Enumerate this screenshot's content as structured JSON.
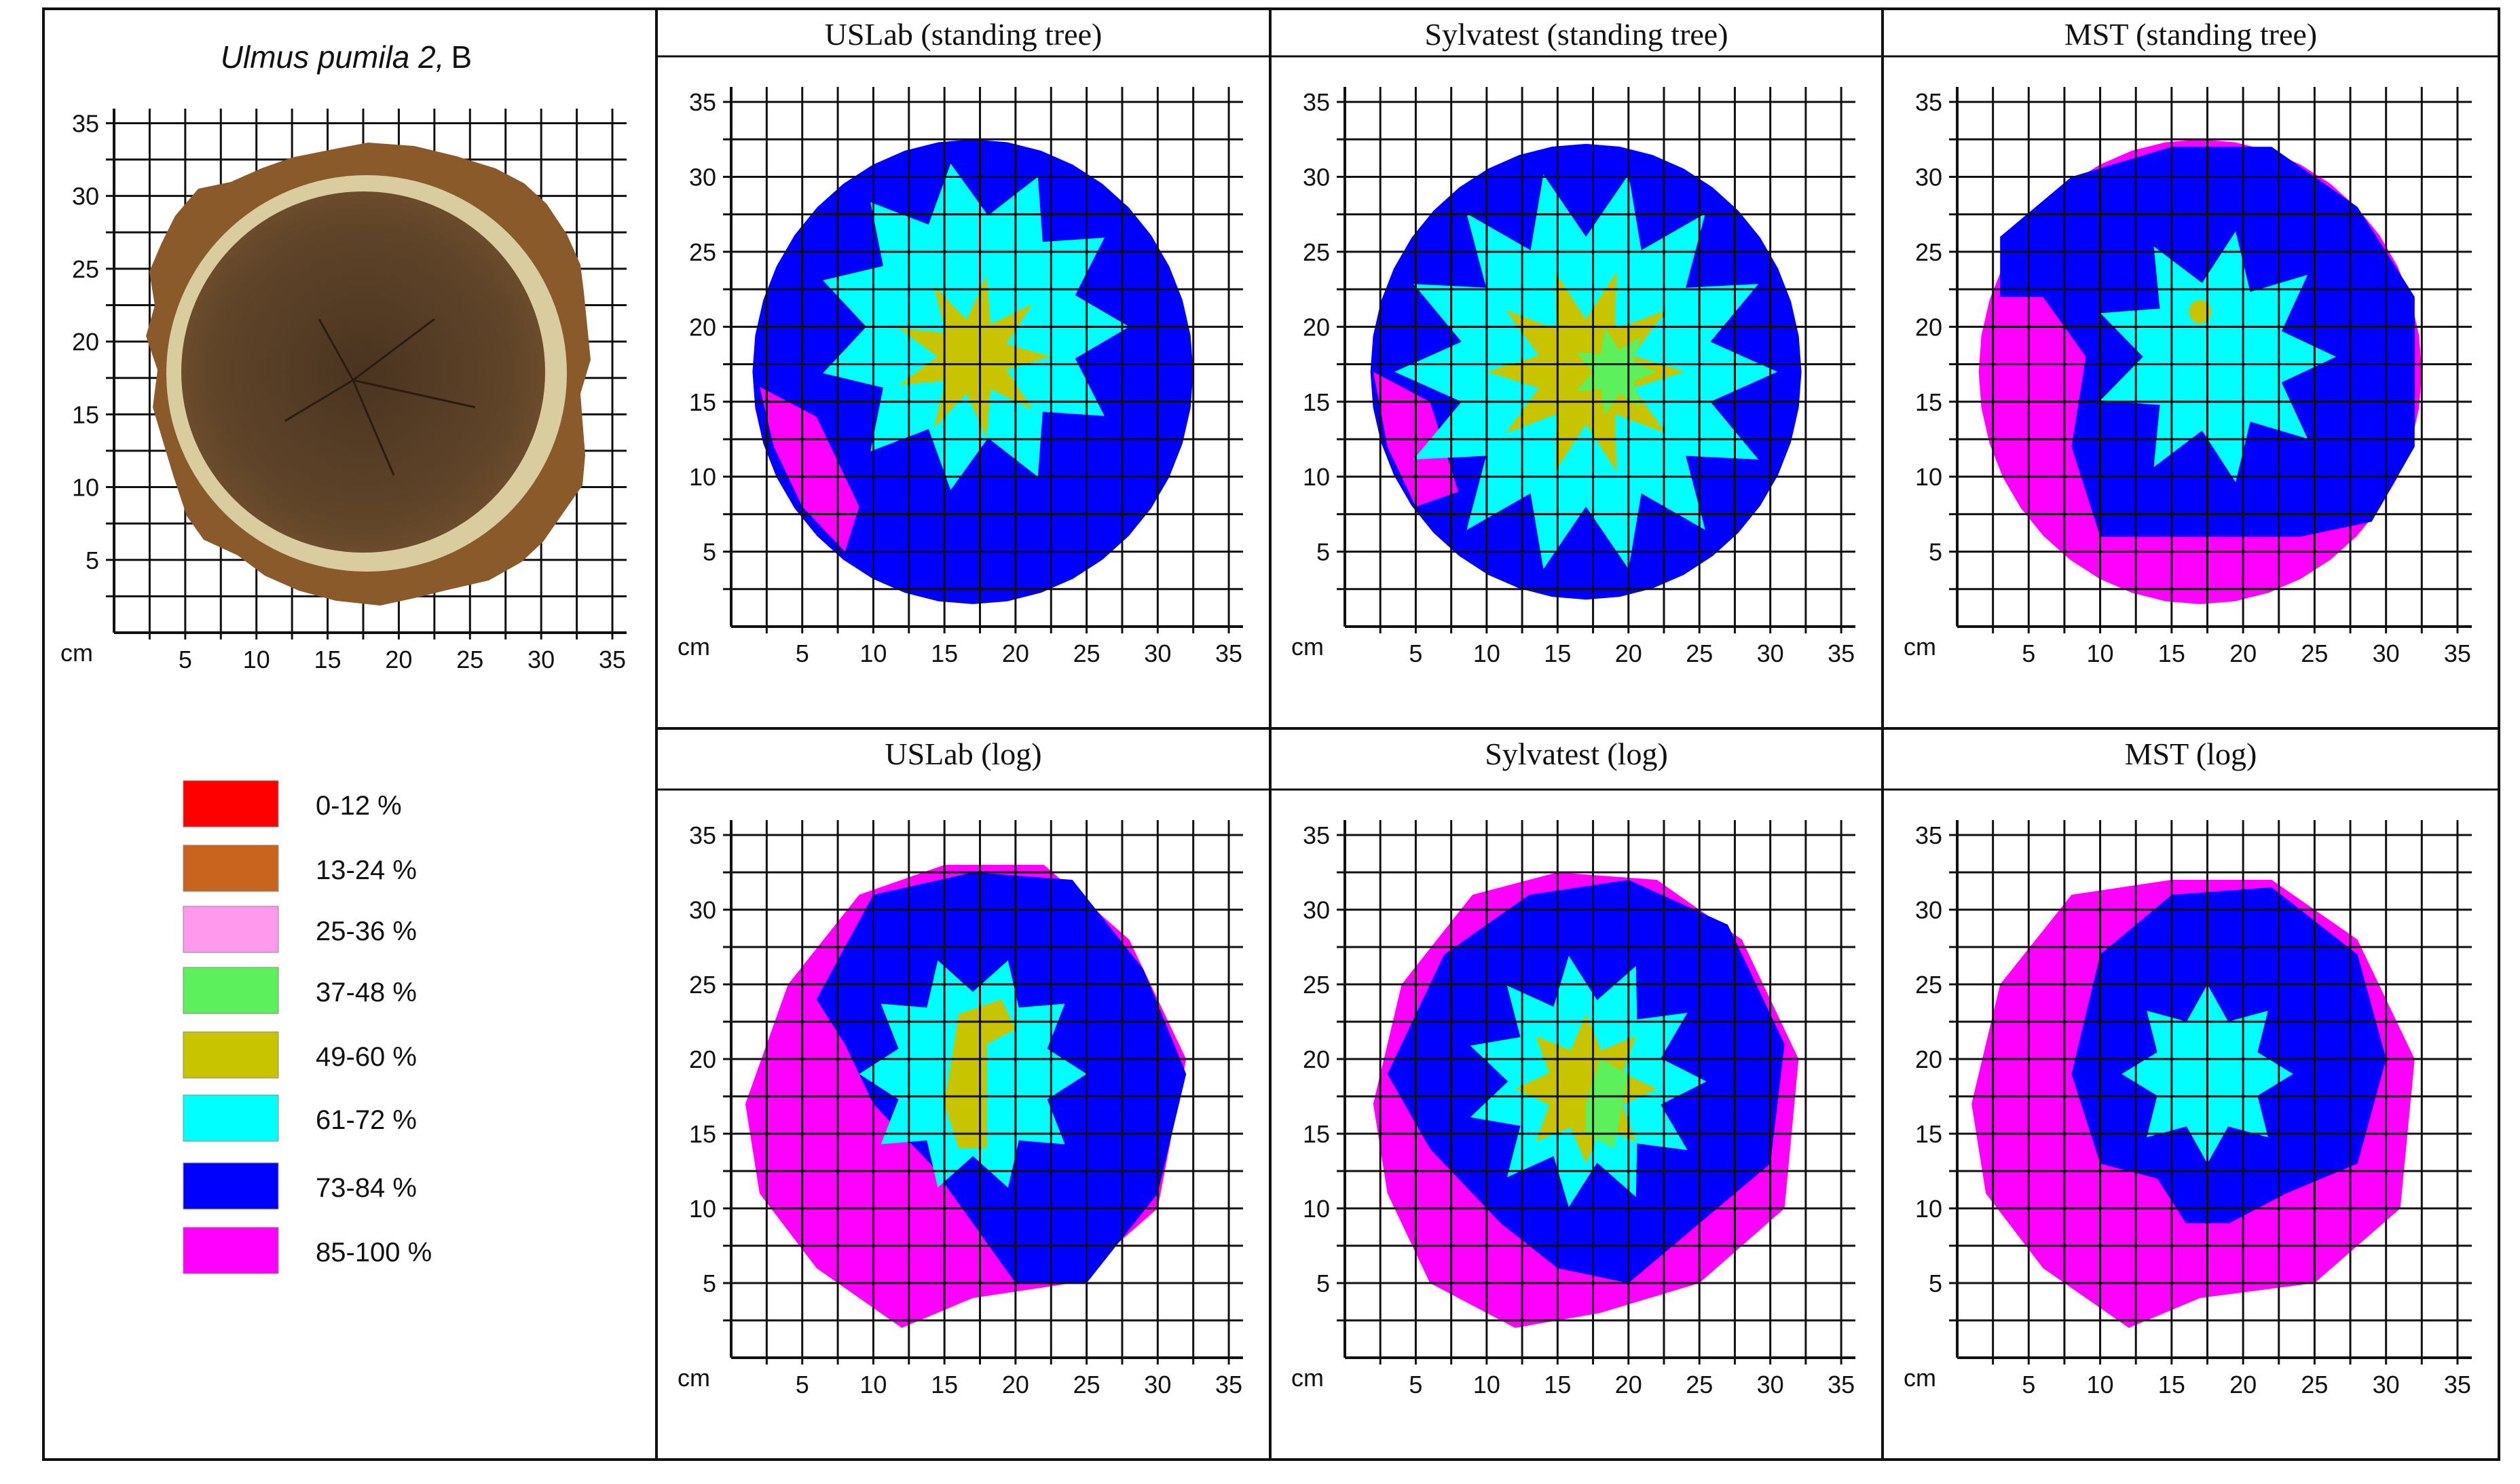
{
  "sample": {
    "species": "Ulmus pumila 2,",
    "suffix": "B"
  },
  "axis": {
    "unit": "cm",
    "ticks": [
      "5",
      "10",
      "15",
      "20",
      "25",
      "30",
      "35"
    ],
    "range": [
      0,
      36
    ]
  },
  "panels": [
    {
      "title": "USLab (standing tree)"
    },
    {
      "title": "Sylvatest (standing tree)"
    },
    {
      "title": "MST (standing tree)"
    },
    {
      "title": "USLab (log)"
    },
    {
      "title": "Sylvatest (log)"
    },
    {
      "title": "MST (log)"
    }
  ],
  "legend": [
    {
      "label": "0-12 %",
      "color": "#ff0000"
    },
    {
      "label": "13-24 %",
      "color": "#c8641e"
    },
    {
      "label": "25-36 %",
      "color": "#ff99ee"
    },
    {
      "label": "37-48 %",
      "color": "#5cf05c"
    },
    {
      "label": "49-60 %",
      "color": "#c8c400"
    },
    {
      "label": "61-72 %",
      "color": "#00ffff"
    },
    {
      "label": "73-84 %",
      "color": "#0000ff"
    },
    {
      "label": "85-100 %",
      "color": "#ff00ff"
    }
  ],
  "colors": {
    "wood_dark": "#5a4027",
    "wood_ring": "#d9cda0",
    "bark": "#8a5a2a",
    "grid": "#111111",
    "border": "#111111"
  }
}
